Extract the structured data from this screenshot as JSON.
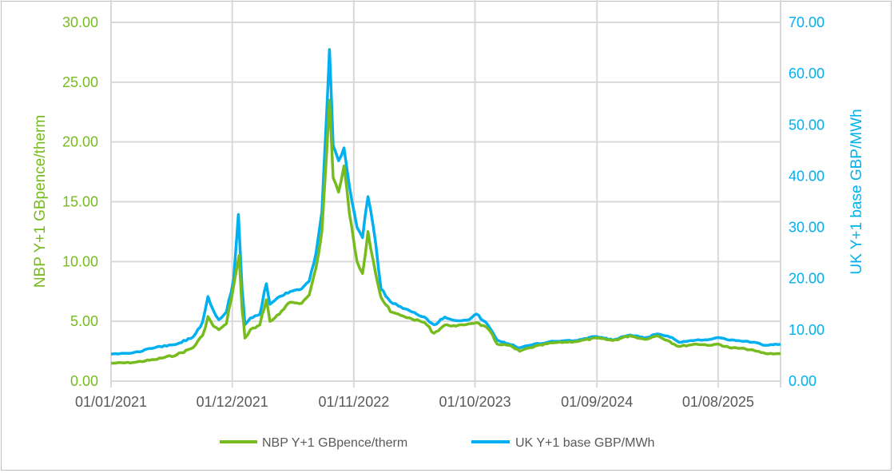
{
  "chart_data": {
    "type": "line",
    "title": "",
    "xlabel": "",
    "ylabel_left": "NBP Y+1 GBpence/therm",
    "ylabel_right": "UK Y+1 base GBP/MWh",
    "ylim_left": [
      0,
      30
    ],
    "ylim_right": [
      0,
      70
    ],
    "xlim": [
      "2021-01-01",
      "2026-01-20"
    ],
    "yticks_left": [
      "0.00",
      "5.00",
      "10.00",
      "15.00",
      "20.00",
      "25.00",
      "30.00"
    ],
    "yticks_right": [
      "0.00",
      "10.00",
      "20.00",
      "30.00",
      "40.00",
      "50.00",
      "60.00",
      "70.00"
    ],
    "xticks": [
      {
        "date": "2021-01-01",
        "label": "01/01/2021"
      },
      {
        "date": "2021-12-01",
        "label": "01/12/2021"
      },
      {
        "date": "2022-11-01",
        "label": "01/11/2022"
      },
      {
        "date": "2023-10-01",
        "label": "01/10/2023"
      },
      {
        "date": "2024-09-01",
        "label": "01/09/2024"
      },
      {
        "date": "2025-08-01",
        "label": "01/08/2025"
      }
    ],
    "grid": true,
    "legend_position": "bottom",
    "colors": {
      "nbp": "#77BC1F",
      "uk": "#00B0F0",
      "grid": "#d9d9d9",
      "xtick": "#595959"
    },
    "series": [
      {
        "name": "NBP Y+1 GBpence/therm",
        "axis": "left",
        "points": [
          [
            "2021-01-01",
            1.5
          ],
          [
            "2021-03-01",
            1.55
          ],
          [
            "2021-05-01",
            1.8
          ],
          [
            "2021-07-01",
            2.2
          ],
          [
            "2021-08-15",
            2.8
          ],
          [
            "2021-09-10",
            3.8
          ],
          [
            "2021-09-25",
            5.4
          ],
          [
            "2021-10-10",
            4.6
          ],
          [
            "2021-10-25",
            4.3
          ],
          [
            "2021-11-15",
            4.8
          ],
          [
            "2021-12-05",
            8.0
          ],
          [
            "2021-12-20",
            10.5
          ],
          [
            "2021-12-28",
            6.0
          ],
          [
            "2022-01-05",
            3.6
          ],
          [
            "2022-01-20",
            4.3
          ],
          [
            "2022-02-15",
            4.7
          ],
          [
            "2022-03-05",
            6.8
          ],
          [
            "2022-03-15",
            5.0
          ],
          [
            "2022-04-10",
            5.6
          ],
          [
            "2022-05-10",
            6.6
          ],
          [
            "2022-06-10",
            6.5
          ],
          [
            "2022-07-01",
            7.2
          ],
          [
            "2022-07-20",
            9.5
          ],
          [
            "2022-08-05",
            12.5
          ],
          [
            "2022-08-18",
            19.0
          ],
          [
            "2022-08-26",
            23.5
          ],
          [
            "2022-09-05",
            17.0
          ],
          [
            "2022-09-20",
            15.8
          ],
          [
            "2022-10-05",
            18.0
          ],
          [
            "2022-10-20",
            14.0
          ],
          [
            "2022-11-10",
            10.0
          ],
          [
            "2022-11-25",
            9.0
          ],
          [
            "2022-12-10",
            12.5
          ],
          [
            "2022-12-25",
            10.0
          ],
          [
            "2023-01-15",
            7.0
          ],
          [
            "2023-02-10",
            5.8
          ],
          [
            "2023-03-10",
            5.5
          ],
          [
            "2023-04-10",
            5.2
          ],
          [
            "2023-05-15",
            4.9
          ],
          [
            "2023-06-10",
            4.0
          ],
          [
            "2023-07-10",
            4.7
          ],
          [
            "2023-08-10",
            4.6
          ],
          [
            "2023-09-15",
            4.8
          ],
          [
            "2023-10-05",
            4.9
          ],
          [
            "2023-11-05",
            4.4
          ],
          [
            "2023-12-01",
            3.1
          ],
          [
            "2024-01-01",
            3.0
          ],
          [
            "2024-02-01",
            2.5
          ],
          [
            "2024-03-01",
            2.8
          ],
          [
            "2024-05-01",
            3.2
          ],
          [
            "2024-07-01",
            3.3
          ],
          [
            "2024-09-01",
            3.6
          ],
          [
            "2024-10-15",
            3.4
          ],
          [
            "2024-12-01",
            3.8
          ],
          [
            "2025-01-10",
            3.5
          ],
          [
            "2025-02-15",
            3.8
          ],
          [
            "2025-03-15",
            3.4
          ],
          [
            "2025-04-15",
            2.9
          ],
          [
            "2025-06-01",
            3.1
          ],
          [
            "2025-07-15",
            3.0
          ],
          [
            "2025-08-01",
            3.1
          ],
          [
            "2025-09-01",
            2.8
          ],
          [
            "2025-10-15",
            2.7
          ],
          [
            "2025-11-15",
            2.5
          ],
          [
            "2025-12-10",
            2.3
          ],
          [
            "2026-01-20",
            2.3
          ]
        ]
      },
      {
        "name": "UK Y+1 base GBP/MWh",
        "axis": "right",
        "points": [
          [
            "2021-01-01",
            5.3
          ],
          [
            "2021-03-01",
            5.5
          ],
          [
            "2021-05-01",
            6.5
          ],
          [
            "2021-07-01",
            7.2
          ],
          [
            "2021-08-15",
            8.6
          ],
          [
            "2021-09-10",
            11.5
          ],
          [
            "2021-09-25",
            16.5
          ],
          [
            "2021-10-10",
            13.8
          ],
          [
            "2021-10-25",
            12.0
          ],
          [
            "2021-11-15",
            13.5
          ],
          [
            "2021-12-05",
            20.0
          ],
          [
            "2021-12-18",
            32.5
          ],
          [
            "2021-12-28",
            18.0
          ],
          [
            "2022-01-05",
            11.0
          ],
          [
            "2022-01-20",
            12.3
          ],
          [
            "2022-02-15",
            13.0
          ],
          [
            "2022-03-05",
            19.0
          ],
          [
            "2022-03-15",
            15.0
          ],
          [
            "2022-04-10",
            16.5
          ],
          [
            "2022-05-10",
            17.5
          ],
          [
            "2022-06-10",
            18.0
          ],
          [
            "2022-07-01",
            19.5
          ],
          [
            "2022-07-20",
            25.0
          ],
          [
            "2022-08-05",
            33.0
          ],
          [
            "2022-08-18",
            52.0
          ],
          [
            "2022-08-26",
            64.7
          ],
          [
            "2022-09-05",
            46.0
          ],
          [
            "2022-09-20",
            43.0
          ],
          [
            "2022-10-05",
            45.5
          ],
          [
            "2022-10-20",
            38.0
          ],
          [
            "2022-11-10",
            30.0
          ],
          [
            "2022-11-25",
            28.0
          ],
          [
            "2022-12-10",
            36.0
          ],
          [
            "2022-12-25",
            30.0
          ],
          [
            "2023-01-15",
            18.0
          ],
          [
            "2023-02-10",
            15.5
          ],
          [
            "2023-03-10",
            14.5
          ],
          [
            "2023-04-10",
            13.5
          ],
          [
            "2023-05-15",
            12.5
          ],
          [
            "2023-06-10",
            11.0
          ],
          [
            "2023-07-10",
            12.5
          ],
          [
            "2023-08-10",
            11.8
          ],
          [
            "2023-09-15",
            12.0
          ],
          [
            "2023-10-05",
            13.1
          ],
          [
            "2023-11-05",
            11.0
          ],
          [
            "2023-12-01",
            8.0
          ],
          [
            "2024-01-01",
            7.3
          ],
          [
            "2024-02-01",
            6.5
          ],
          [
            "2024-03-01",
            7.0
          ],
          [
            "2024-05-01",
            7.8
          ],
          [
            "2024-07-01",
            7.9
          ],
          [
            "2024-09-01",
            8.7
          ],
          [
            "2024-10-15",
            8.0
          ],
          [
            "2024-12-01",
            9.0
          ],
          [
            "2025-01-10",
            8.4
          ],
          [
            "2025-02-15",
            9.2
          ],
          [
            "2025-03-15",
            8.8
          ],
          [
            "2025-04-15",
            7.6
          ],
          [
            "2025-06-01",
            8.0
          ],
          [
            "2025-07-15",
            8.2
          ],
          [
            "2025-08-01",
            8.5
          ],
          [
            "2025-09-01",
            8.0
          ],
          [
            "2025-10-15",
            7.8
          ],
          [
            "2025-11-15",
            7.5
          ],
          [
            "2025-12-10",
            7.0
          ],
          [
            "2026-01-20",
            7.2
          ]
        ]
      }
    ]
  }
}
